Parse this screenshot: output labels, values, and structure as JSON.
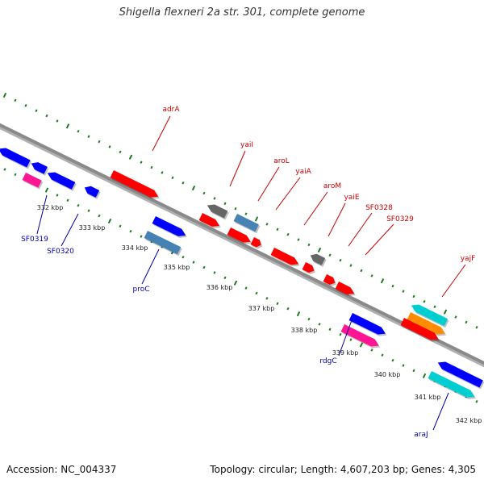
{
  "title": "Shigella flexneri 2a str. 301, complete genome",
  "accession_text": "Accession: NC_004337",
  "summary_text": "Topology: circular; Length: 4,607,203 bp; Genes: 4,305",
  "colors": {
    "backbone": "#8a8a8a",
    "ruler": "#1f7a1f",
    "label_above": "#cc0000",
    "label_below": "#0000aa"
  },
  "kbp_ticks": [
    "332 kbp",
    "333 kbp",
    "334 kbp",
    "335 kbp",
    "336 kbp",
    "337 kbp",
    "338 kbp",
    "339 kbp",
    "340 kbp",
    "341 kbp",
    "342 kbp"
  ],
  "features": [
    {
      "color": "#0000ff",
      "strand": "reverse"
    },
    {
      "color": "#0000ff",
      "strand": "reverse"
    },
    {
      "color": "#0000ff",
      "strand": "reverse"
    },
    {
      "color": "#ff1493",
      "strand": "none"
    },
    {
      "color": "#0000ff",
      "strand": "reverse"
    },
    {
      "color": "#ff0000",
      "strand": "forward"
    },
    {
      "color": "#666666",
      "strand": "reverse"
    },
    {
      "color": "#ff0000",
      "strand": "forward"
    },
    {
      "color": "#0000ff",
      "strand": "forward"
    },
    {
      "color": "#4682b4",
      "strand": "none"
    },
    {
      "color": "#4682b4",
      "strand": "none"
    },
    {
      "color": "#ff0000",
      "strand": "forward"
    },
    {
      "color": "#ff0000",
      "strand": "forward"
    },
    {
      "color": "#ff0000",
      "strand": "forward"
    },
    {
      "color": "#666666",
      "strand": "reverse"
    },
    {
      "color": "#ff0000",
      "strand": "forward"
    },
    {
      "color": "#ff0000",
      "strand": "forward"
    },
    {
      "color": "#ff0000",
      "strand": "forward"
    },
    {
      "color": "#0000ff",
      "strand": "forward"
    },
    {
      "color": "#ff1493",
      "strand": "forward"
    },
    {
      "color": "#00ced1",
      "strand": "reverse"
    },
    {
      "color": "#ff8c00",
      "strand": "forward"
    },
    {
      "color": "#ff0000",
      "strand": "forward"
    },
    {
      "color": "#0000ff",
      "strand": "reverse"
    },
    {
      "color": "#00ced1",
      "strand": "forward"
    }
  ],
  "gene_labels_above": [
    "adrA",
    "yaiI",
    "aroL",
    "yaiA",
    "aroM",
    "yaiE",
    "SF0328",
    "SF0329",
    "yajF"
  ],
  "gene_labels_below": [
    "SF0319",
    "SF0320",
    "proC",
    "rdgC",
    "araJ"
  ]
}
